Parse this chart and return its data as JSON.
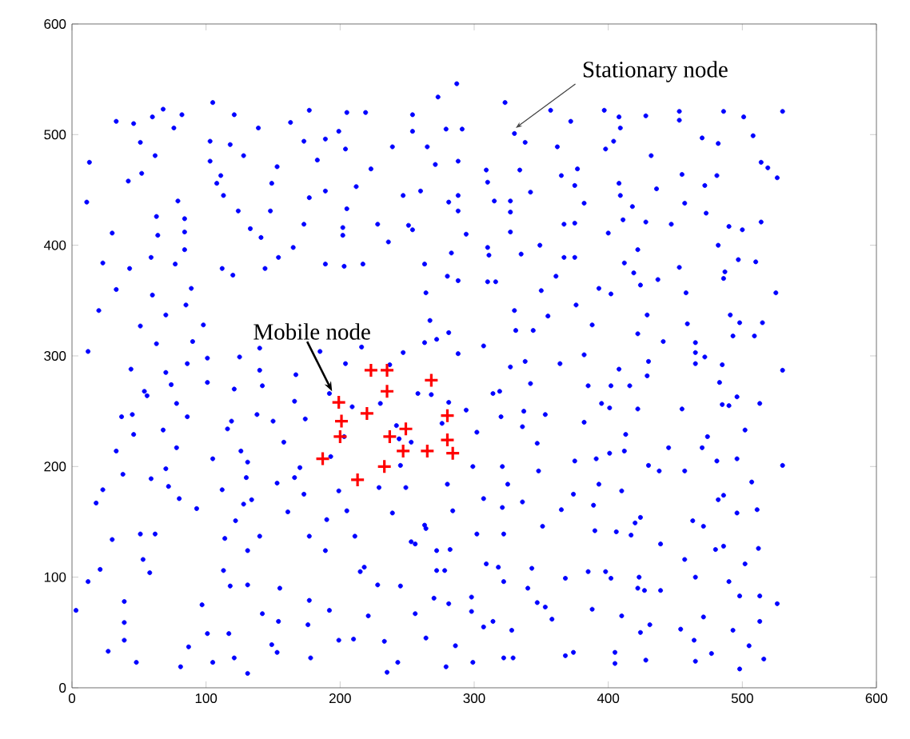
{
  "chart_data": {
    "type": "scatter",
    "xlim": [
      0,
      600
    ],
    "ylim": [
      0,
      600
    ],
    "xticks": [
      0,
      100,
      200,
      300,
      400,
      500,
      600
    ],
    "yticks": [
      0,
      100,
      200,
      300,
      400,
      500,
      600
    ],
    "grid": false,
    "annotations": [
      {
        "text": "Stationary node",
        "x": 331,
        "y": 506
      },
      {
        "text": "Mobile node",
        "x": 194,
        "y": 268
      }
    ],
    "series": [
      {
        "color": "#0000ff",
        "marker": "circle",
        "x": [
          13,
          11,
          33,
          46,
          51,
          60,
          68,
          82,
          76,
          62,
          42,
          52,
          30,
          23,
          33,
          20,
          43,
          59,
          63,
          64,
          79,
          84,
          84,
          84,
          77,
          89,
          85,
          60,
          70,
          51,
          63,
          90,
          98,
          105,
          103,
          103,
          111,
          113,
          108,
          118,
          121,
          128,
          124,
          133,
          141,
          112,
          120,
          144,
          154,
          165,
          139,
          148,
          149,
          153,
          163,
          173,
          177,
          183,
          177,
          173,
          189,
          189,
          199,
          204,
          205,
          219,
          223,
          212,
          205,
          202,
          202,
          189,
          203,
          217,
          228,
          236,
          239,
          247,
          251,
          254,
          254,
          254,
          260,
          265,
          271,
          273,
          279,
          287,
          291,
          288,
          288,
          281,
          288,
          294,
          283,
          280,
          288,
          263,
          264,
          267,
          272,
          281,
          263,
          140,
          216,
          323,
          330,
          338,
          357,
          372,
          362,
          397,
          408,
          409,
          404,
          398,
          428,
          453,
          453,
          470,
          482,
          486,
          501,
          508,
          530,
          432,
          309,
          310,
          334,
          365,
          377,
          375,
          342,
          315,
          327,
          327,
          382,
          408,
          409,
          418,
          436,
          455,
          457,
          472,
          481,
          473,
          514,
          519,
          526,
          411,
          428,
          447,
          367,
          375,
          400,
          327,
          310,
          311,
          335,
          349,
          367,
          375,
          422,
          412,
          419,
          424,
          437,
          453,
          490,
          500,
          514,
          482,
          497,
          510,
          487,
          486,
          310,
          316,
          361,
          350,
          393,
          402,
          376,
          355,
          330,
          331,
          344,
          388,
          429,
          422,
          441,
          459,
          458,
          465,
          491,
          498,
          493,
          509,
          515,
          525,
          12,
          44,
          54,
          56,
          37,
          45,
          46,
          33,
          38,
          23,
          18,
          30,
          21,
          12,
          3,
          39,
          39,
          39,
          27,
          48,
          53,
          58,
          51,
          62,
          59,
          72,
          70,
          80,
          78,
          78,
          86,
          68,
          70,
          74,
          86,
          101,
          101,
          93,
          105,
          112,
          114,
          113,
          118,
          97,
          101,
          87,
          81,
          105,
          121,
          117,
          119,
          116,
          121,
          125,
          140,
          142,
          138,
          150,
          126,
          131,
          130,
          134,
          128,
          122,
          131,
          131,
          140,
          142,
          131,
          149,
          153,
          154,
          155,
          153,
          158,
          161,
          167,
          166,
          174,
          170,
          166,
          173,
          177,
          177,
          176,
          178,
          185,
          192,
          193,
          189,
          190,
          192,
          199,
          199,
          210,
          211,
          205,
          204,
          203,
          209,
          215,
          218,
          221,
          228,
          233,
          235,
          243,
          245,
          239,
          229,
          230,
          237,
          247,
          258,
          242,
          245,
          249,
          256,
          253,
          263,
          264,
          272,
          272,
          256,
          264,
          270,
          279,
          286,
          281,
          278,
          282,
          284,
          280,
          281,
          288,
          268,
          276,
          253,
          244,
          307,
          327,
          338,
          364,
          382,
          408,
          430,
          429,
          465,
          472,
          465,
          485,
          530,
          342,
          314,
          319,
          385,
          402,
          416,
          294,
          320,
          337,
          336,
          353,
          395,
          401,
          422,
          382,
          302,
          347,
          413,
          445,
          455,
          483,
          485,
          490,
          496,
          502,
          513,
          474,
          470,
          412,
          401,
          391,
          375,
          348,
          325,
          321,
          299,
          307,
          321,
          336,
          351,
          365,
          374,
          389,
          393,
          410,
          430,
          438,
          457,
          481,
          496,
          507,
          530,
          482,
          486,
          496,
          511,
          463,
          471,
          424,
          420,
          417,
          406,
          390,
          302,
          322,
          439,
          457,
          480,
          486,
          512,
          502,
          309,
          318,
          322,
          343,
          340,
          347,
          353,
          358,
          368,
          385,
          398,
          402,
          423,
          422,
          427,
          439,
          465,
          490,
          498,
          513,
          526,
          513,
          493,
          471,
          454,
          464,
          477,
          465,
          498,
          505,
          516,
          431,
          424,
          410,
          388,
          298,
          298,
          307,
          314,
          328,
          322,
          329,
          299,
          368,
          374,
          405,
          405,
          428
        ],
        "values": [
          475,
          439,
          512,
          510,
          493,
          516,
          523,
          518,
          506,
          481,
          458,
          465,
          411,
          384,
          360,
          341,
          379,
          389,
          426,
          409,
          440,
          424,
          412,
          396,
          383,
          361,
          346,
          355,
          337,
          327,
          311,
          313,
          328,
          529,
          494,
          476,
          463,
          445,
          456,
          491,
          518,
          481,
          431,
          415,
          407,
          379,
          373,
          379,
          389,
          398,
          506,
          431,
          456,
          471,
          511,
          494,
          522,
          477,
          443,
          419,
          496,
          449,
          503,
          487,
          520,
          520,
          469,
          453,
          433,
          416,
          409,
          383,
          381,
          383,
          419,
          403,
          489,
          445,
          418,
          414,
          518,
          503,
          449,
          489,
          473,
          534,
          505,
          546,
          505,
          476,
          445,
          439,
          431,
          410,
          393,
          372,
          368,
          383,
          357,
          332,
          315,
          321,
          312,
          307,
          308,
          529,
          501,
          493,
          522,
          512,
          489,
          522,
          516,
          506,
          494,
          487,
          517,
          521,
          513,
          497,
          492,
          521,
          516,
          499,
          521,
          481,
          468,
          457,
          468,
          463,
          469,
          454,
          448,
          440,
          440,
          430,
          438,
          456,
          445,
          435,
          451,
          464,
          438,
          454,
          463,
          429,
          475,
          470,
          461,
          423,
          421,
          419,
          419,
          420,
          411,
          412,
          398,
          391,
          392,
          400,
          389,
          389,
          396,
          384,
          375,
          364,
          369,
          380,
          417,
          414,
          421,
          400,
          387,
          385,
          376,
          370,
          367,
          367,
          372,
          359,
          361,
          356,
          346,
          336,
          341,
          323,
          323,
          328,
          337,
          320,
          313,
          329,
          357,
          312,
          337,
          330,
          318,
          318,
          330,
          357,
          304,
          288,
          268,
          264,
          245,
          247,
          229,
          214,
          193,
          179,
          167,
          134,
          107,
          96,
          70,
          78,
          59,
          43,
          33,
          23,
          116,
          104,
          139,
          139,
          189,
          182,
          198,
          171,
          217,
          257,
          245,
          233,
          285,
          274,
          293,
          298,
          276,
          162,
          207,
          179,
          135,
          106,
          92,
          75,
          49,
          37,
          19,
          23,
          27,
          49,
          241,
          234,
          270,
          299,
          287,
          273,
          247,
          241,
          214,
          204,
          190,
          170,
          166,
          151,
          124,
          93,
          137,
          67,
          13,
          39,
          32,
          60,
          90,
          185,
          222,
          159,
          283,
          259,
          243,
          199,
          190,
          175,
          137,
          79,
          57,
          27,
          304,
          266,
          209,
          124,
          152,
          70,
          178,
          43,
          44,
          137,
          160,
          293,
          227,
          254,
          105,
          109,
          65,
          93,
          42,
          14,
          23,
          92,
          158,
          181,
          257,
          292,
          303,
          266,
          237,
          201,
          181,
          130,
          132,
          147,
          144,
          124,
          106,
          67,
          45,
          81,
          19,
          38,
          76,
          106,
          125,
          160,
          184,
          258,
          302,
          265,
          239,
          222,
          225,
          309,
          290,
          295,
          293,
          301,
          288,
          295,
          282,
          303,
          299,
          293,
          292,
          287,
          275,
          266,
          268,
          273,
          273,
          273,
          251,
          245,
          250,
          236,
          247,
          257,
          253,
          252,
          240,
          231,
          221,
          229,
          217,
          252,
          276,
          256,
          255,
          263,
          233,
          257,
          227,
          217,
          214,
          212,
          207,
          205,
          196,
          184,
          200,
          200,
          171,
          163,
          168,
          146,
          161,
          175,
          165,
          184,
          178,
          201,
          196,
          196,
          205,
          207,
          186,
          201,
          170,
          174,
          158,
          161,
          151,
          146,
          154,
          149,
          138,
          141,
          142,
          139,
          139,
          130,
          116,
          125,
          128,
          126,
          112,
          112,
          109,
          96,
          108,
          90,
          77,
          73,
          62,
          99,
          105,
          105,
          99,
          100,
          90,
          88,
          88,
          100,
          96,
          83,
          83,
          76,
          60,
          52,
          64,
          53,
          43,
          31,
          24,
          17,
          38,
          26,
          57,
          50,
          65,
          71,
          82,
          69,
          55,
          60,
          52,
          27,
          27,
          23,
          29,
          32,
          32,
          22,
          25
        ]
      },
      {
        "color": "#ff0000",
        "marker": "cross",
        "x": [
          223,
          235,
          235,
          268,
          199,
          220,
          201,
          200,
          237,
          249,
          280,
          280,
          247,
          265,
          284,
          187,
          233,
          213
        ],
        "values": [
          287,
          287,
          268,
          278,
          258,
          248,
          241,
          227,
          227,
          234,
          246,
          224,
          214,
          214,
          212,
          207,
          200,
          188
        ]
      }
    ]
  }
}
